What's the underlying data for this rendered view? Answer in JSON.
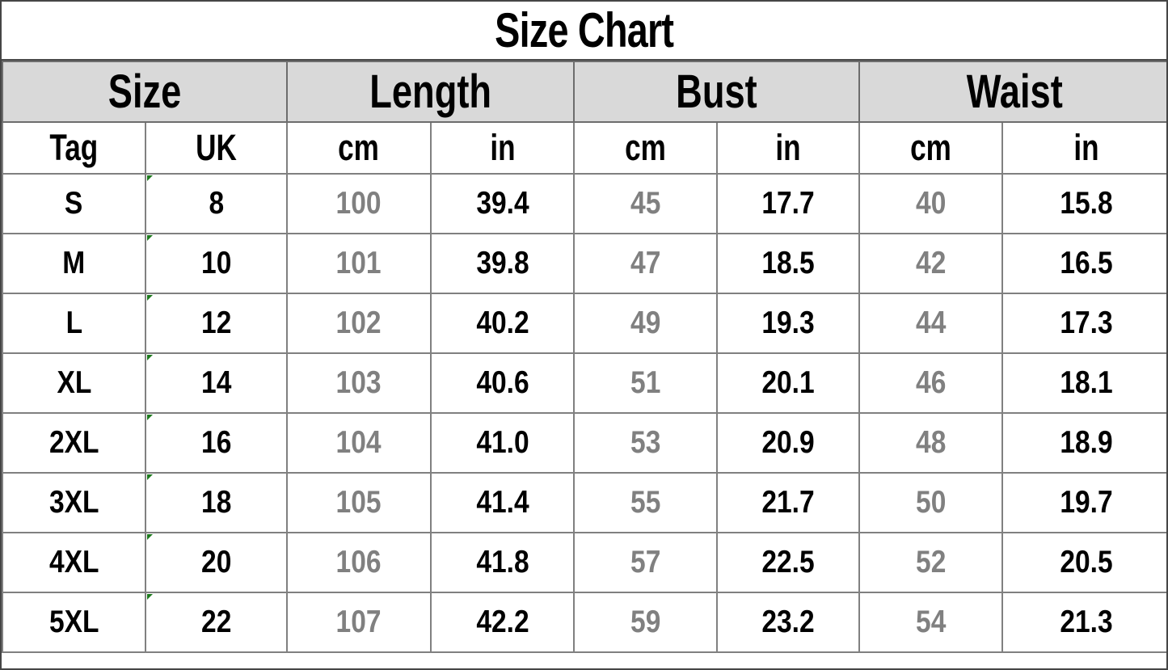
{
  "title": "Size Chart",
  "colors": {
    "header_fill": "#d9d9d9",
    "grid_line": "#808080",
    "outer_border": "#454545",
    "value_cm_muted": "#808080",
    "value_in_strong": "#000000",
    "error_flag_green": "#1e7a1e"
  },
  "chart_data": {
    "type": "table",
    "title": "Size Chart",
    "column_groups": [
      {
        "label": "Size",
        "span": 2
      },
      {
        "label": "Length",
        "span": 2
      },
      {
        "label": "Bust",
        "span": 2
      },
      {
        "label": "Waist",
        "span": 2
      }
    ],
    "sub_columns": [
      "Tag",
      "UK",
      "cm",
      "in",
      "cm",
      "in",
      "cm",
      "in"
    ],
    "rows": [
      [
        "S",
        "8",
        "100",
        "39.4",
        "45",
        "17.7",
        "40",
        "15.8"
      ],
      [
        "M",
        "10",
        "101",
        "39.8",
        "47",
        "18.5",
        "42",
        "16.5"
      ],
      [
        "L",
        "12",
        "102",
        "40.2",
        "49",
        "19.3",
        "44",
        "17.3"
      ],
      [
        "XL",
        "14",
        "103",
        "40.6",
        "51",
        "20.1",
        "46",
        "18.1"
      ],
      [
        "2XL",
        "16",
        "104",
        "41.0",
        "53",
        "20.9",
        "48",
        "18.9"
      ],
      [
        "3XL",
        "18",
        "105",
        "41.4",
        "55",
        "21.7",
        "50",
        "19.7"
      ],
      [
        "4XL",
        "20",
        "106",
        "41.8",
        "57",
        "22.5",
        "52",
        "20.5"
      ],
      [
        "5XL",
        "22",
        "107",
        "42.2",
        "59",
        "23.2",
        "54",
        "21.3"
      ]
    ],
    "muted_column_indexes": [
      2,
      4,
      6
    ],
    "flagged_column_index": 1,
    "layout": {
      "grid": true,
      "header_groups_shaded": true
    }
  }
}
